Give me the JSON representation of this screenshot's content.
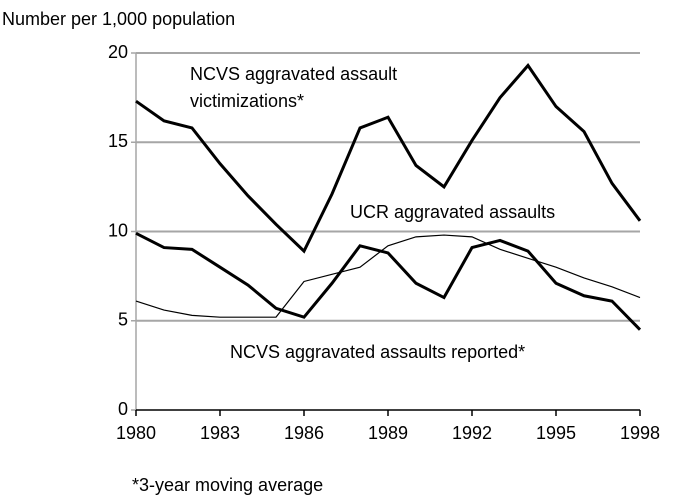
{
  "chart_data": {
    "type": "line",
    "y_label": "Number per 1,000 population",
    "footnote": "*3-year moving average",
    "x": [
      1980,
      1981,
      1982,
      1983,
      1984,
      1985,
      1986,
      1987,
      1988,
      1989,
      1990,
      1991,
      1992,
      1993,
      1994,
      1995,
      1996,
      1997,
      1998
    ],
    "series": [
      {
        "name": "NCVS aggravated assault victimizations*",
        "color": "#000000",
        "width": 3,
        "values": [
          17.3,
          16.2,
          15.8,
          13.8,
          12.0,
          10.4,
          8.9,
          12.1,
          15.8,
          16.4,
          13.7,
          12.5,
          15.1,
          17.5,
          19.3,
          17.0,
          15.6,
          12.7,
          10.6
        ]
      },
      {
        "name": "UCR aggravated assaults",
        "color": "#000000",
        "width": 1.2,
        "values": [
          6.1,
          5.6,
          5.3,
          5.2,
          5.2,
          5.2,
          7.2,
          7.6,
          8.0,
          9.2,
          9.7,
          9.8,
          9.7,
          9.0,
          8.5,
          8.0,
          7.4,
          6.9,
          6.3
        ]
      },
      {
        "name": "NCVS aggravated assaults reported*",
        "color": "#000000",
        "width": 3,
        "values": [
          9.9,
          9.1,
          9.0,
          8.0,
          7.0,
          5.7,
          5.2,
          7.1,
          9.2,
          8.8,
          7.1,
          6.3,
          9.1,
          9.5,
          8.9,
          7.1,
          6.4,
          6.1,
          4.5
        ]
      }
    ],
    "xlim": [
      1980,
      1998
    ],
    "xticks": [
      1980,
      1983,
      1986,
      1989,
      1992,
      1995,
      1998
    ],
    "ylim": [
      0,
      20
    ],
    "yticks": [
      0,
      5,
      10,
      15,
      20
    ],
    "grid": true
  }
}
